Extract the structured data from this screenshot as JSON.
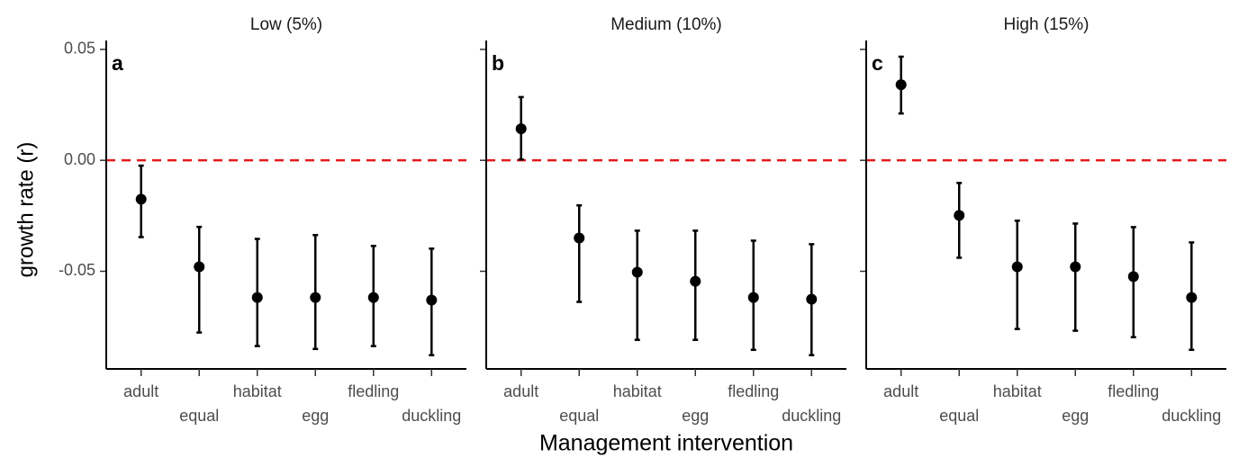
{
  "chart_data": [
    {
      "type": "errorbar",
      "title": "Low (5%)",
      "panel_label": "a",
      "ylabel": "growth rate (r)",
      "categories": [
        "adult",
        "equal",
        "habitat",
        "egg",
        "fledling",
        "duckling"
      ],
      "values": [
        -0.0175,
        -0.048,
        -0.0618,
        -0.0618,
        -0.0618,
        -0.063
      ],
      "lower": [
        -0.0346,
        -0.0776,
        -0.0837,
        -0.085,
        -0.0837,
        -0.0878
      ],
      "upper": [
        -0.0024,
        -0.03,
        -0.0354,
        -0.0337,
        -0.0386,
        -0.0398
      ],
      "color": "#000000",
      "ylim": [
        -0.094,
        0.054
      ],
      "yticks": [
        -0.05,
        {
          "value": 0,
          "label": "0.00"
        },
        0.05
      ],
      "hline": 0,
      "hline_color": "#e41a1c"
    },
    {
      "type": "errorbar",
      "title": "Medium (10%)",
      "panel_label": "b",
      "xlabel": "Management intervention",
      "categories": [
        "adult",
        "equal",
        "habitat",
        "egg",
        "fledling",
        "duckling"
      ],
      "values": [
        0.0142,
        -0.035,
        -0.0504,
        -0.0545,
        -0.0618,
        -0.0626
      ],
      "lower": [
        0.0004,
        -0.0638,
        -0.0809,
        -0.0809,
        -0.0854,
        -0.0878
      ],
      "upper": [
        0.0285,
        -0.0203,
        -0.0317,
        -0.0317,
        -0.0362,
        -0.0378
      ],
      "color": "#000000"
    },
    {
      "type": "errorbar",
      "title": "High (15%)",
      "panel_label": "c",
      "categories": [
        "adult",
        "equal",
        "habitat",
        "egg",
        "fledling",
        "duckling"
      ],
      "values": [
        0.0341,
        -0.0248,
        -0.048,
        -0.048,
        -0.0524,
        -0.0618
      ],
      "lower": [
        0.0211,
        -0.0439,
        -0.076,
        -0.0768,
        -0.0797,
        -0.0854
      ],
      "upper": [
        0.0467,
        -0.0102,
        -0.0272,
        -0.0285,
        -0.0301,
        -0.037
      ],
      "color": "#000000"
    }
  ]
}
